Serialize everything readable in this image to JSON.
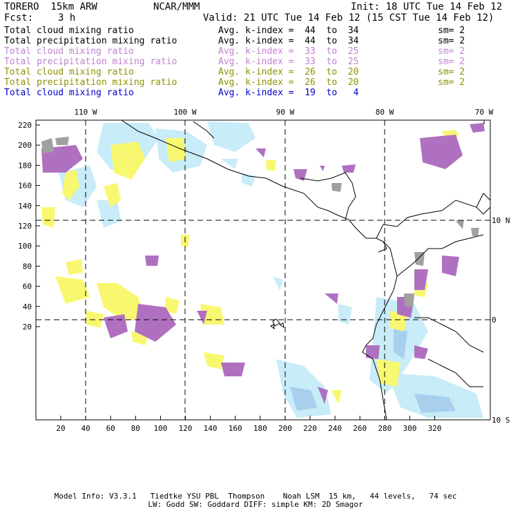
{
  "header": {
    "model": "TORERO  15km ARW",
    "center": "NCAR/MMM",
    "init": "Init: 18 UTC Tue 14 Feb 12",
    "fcst_label": "Fcst:",
    "fcst_value": "3 h",
    "valid": "Valid: 21 UTC Tue 14 Feb 12 (15 CST Tue 14 Feb 12)"
  },
  "legend": [
    {
      "name": "Total cloud mixing ratio",
      "kindex": "Avg. k-index =  44  to  34",
      "sm": "sm= 2",
      "color": "#000000"
    },
    {
      "name": "Total precipitation mixing ratio",
      "kindex": "Avg. k-index =  44  to  34",
      "sm": "sm= 2",
      "color": "#000000"
    },
    {
      "name": "Total cloud mixing ratio",
      "kindex": "Avg. k-index =  33  to  25",
      "sm": "sm= 2",
      "color": "#c080d0"
    },
    {
      "name": "Total precipitation mixing ratio",
      "kindex": "Avg. k-index =  33  to  25",
      "sm": "sm= 2",
      "color": "#c080d0"
    },
    {
      "name": "Total cloud mixing ratio",
      "kindex": "Avg. k-index =  26  to  20",
      "sm": "sm= 2",
      "color": "#909000"
    },
    {
      "name": "Total precipitation mixing ratio",
      "kindex": "Avg. k-index =  26  to  20",
      "sm": "sm= 2",
      "color": "#909000"
    },
    {
      "name": "Total cloud mixing ratio",
      "kindex": "Avg. k-index =  19  to   4",
      "sm": "",
      "color": "#0000cc"
    }
  ],
  "axes": {
    "top_lon": [
      "110 W",
      "100 W",
      "90 W",
      "80 W",
      "70 W"
    ],
    "right_lat": [
      "10 N",
      "0",
      "10 S"
    ],
    "left_y": [
      "220",
      "200",
      "180",
      "160",
      "140",
      "120",
      "100",
      "80",
      "60",
      "40",
      "20"
    ],
    "bottom_x": [
      "20",
      "40",
      "60",
      "80",
      "100",
      "120",
      "140",
      "160",
      "180",
      "200",
      "220",
      "240",
      "260",
      "280",
      "300",
      "320"
    ]
  },
  "footer": {
    "line1": "Model Info: V3.3.1   Tiedtke YSU PBL  Thompson    Noah LSM  15 km,   44 levels,   74 sec",
    "line2": "LW: Godd SW: Goddard DIFF: simple KM: 2D Smagor"
  },
  "colors": {
    "gray": "#a0a0a0",
    "purple": "#b070c0",
    "yellow": "#f8f870",
    "lightblue": "#c8ecf8",
    "blue": "#a8d0ec",
    "coast": "#000000"
  }
}
